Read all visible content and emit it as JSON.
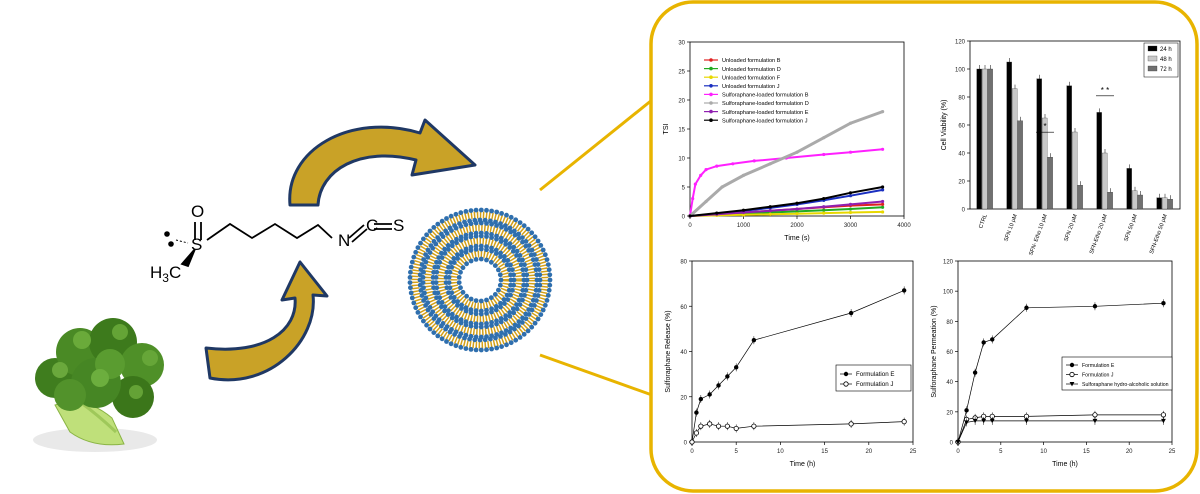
{
  "molecule": {
    "atom_o": "O",
    "atom_s": "S",
    "atom_h3c": "H",
    "atom_h3c_sub": "3",
    "atom_h3c_c": "C",
    "atom_n": "N",
    "atom_c": "C",
    "atom_s2": "S",
    "eq1": "=",
    "eq2": "="
  },
  "colors": {
    "accent_gold": "#e8b400",
    "arrow_navy": "#1f3864",
    "arrow_gold": "#c9a227",
    "vesicle_blue": "#2f6fae",
    "vesicle_gold": "#d4a017"
  },
  "chart_data": [
    {
      "id": "tsi",
      "type": "line",
      "ylabel": "TSI",
      "xlabel": "Time (s)",
      "xlim": [
        0,
        4000
      ],
      "ylim": [
        0,
        30
      ],
      "xticks": [
        0,
        1000,
        2000,
        3000,
        4000
      ],
      "yticks": [
        0,
        5,
        10,
        15,
        20,
        25,
        30
      ],
      "series": [
        {
          "name": "Unloaded formulation B",
          "color": "#e02020",
          "x": [
            0,
            500,
            1000,
            1500,
            2000,
            2500,
            3000,
            3600
          ],
          "y": [
            0,
            0.3,
            0.6,
            0.9,
            1.2,
            1.5,
            1.8,
            2.0
          ]
        },
        {
          "name": "Unloaded formulation D",
          "color": "#22aa22",
          "x": [
            0,
            500,
            1000,
            1500,
            2000,
            2500,
            3000,
            3600
          ],
          "y": [
            0,
            0.2,
            0.4,
            0.6,
            0.8,
            1.0,
            1.2,
            1.5
          ]
        },
        {
          "name": "Unloaded formulation F",
          "color": "#e8d800",
          "x": [
            0,
            500,
            1000,
            1500,
            2000,
            2500,
            3000,
            3600
          ],
          "y": [
            0,
            0.1,
            0.2,
            0.3,
            0.4,
            0.5,
            0.6,
            0.7
          ]
        },
        {
          "name": "Unloaded formulation J",
          "color": "#1a2fc0",
          "x": [
            0,
            500,
            1000,
            1500,
            2000,
            2500,
            3000,
            3600
          ],
          "y": [
            0,
            0.4,
            0.9,
            1.4,
            2.0,
            2.7,
            3.5,
            4.5
          ]
        },
        {
          "name": "Sulforaphane-loaded formulation B",
          "color": "#ff20ff",
          "x": [
            0,
            50,
            100,
            200,
            300,
            500,
            800,
            1200,
            1800,
            2500,
            3000,
            3600
          ],
          "y": [
            0,
            3,
            5.5,
            7,
            8,
            8.6,
            9,
            9.5,
            10,
            10.6,
            11,
            11.5
          ]
        },
        {
          "name": "Sulforaphane-loaded formulation D",
          "color": "#aaaaaa",
          "x": [
            0,
            300,
            600,
            1000,
            1500,
            2000,
            2500,
            3000,
            3600
          ],
          "y": [
            0,
            2.5,
            5,
            7,
            9,
            11,
            13.5,
            16,
            18
          ]
        },
        {
          "name": "Sulforaphane-loaded formulation E",
          "color": "#9020b0",
          "x": [
            0,
            500,
            1000,
            1500,
            2000,
            2500,
            3000,
            3600
          ],
          "y": [
            0,
            0.3,
            0.6,
            0.9,
            1.2,
            1.6,
            2.0,
            2.5
          ]
        },
        {
          "name": "Sulforaphane-loaded formulation J",
          "color": "#000000",
          "x": [
            0,
            500,
            1000,
            1500,
            2000,
            2500,
            3000,
            3600
          ],
          "y": [
            0,
            0.5,
            1.0,
            1.6,
            2.2,
            3.0,
            4.0,
            5.0
          ]
        }
      ]
    },
    {
      "id": "viability",
      "type": "bar",
      "ylabel": "Cell Viability (%)",
      "ylim": [
        0,
        120
      ],
      "yticks": [
        0,
        20,
        40,
        60,
        80,
        100,
        120
      ],
      "categories": [
        "CTRL",
        "SFN 10 μM",
        "SFN- Etho 10 μM",
        "SFN 20 μM",
        "SFN-Etho 20 μM",
        "SFN 50 μM",
        "SFN-Etho 50 μM"
      ],
      "series": [
        {
          "name": "24 h",
          "color": "#000000",
          "values": [
            100,
            105,
            93,
            88,
            69,
            29,
            8
          ]
        },
        {
          "name": "48 h",
          "color": "#c8c8c8",
          "values": [
            100,
            86,
            65,
            55,
            40,
            13,
            8
          ]
        },
        {
          "name": "72 h",
          "color": "#707070",
          "values": [
            100,
            63,
            37,
            17,
            12,
            10,
            7
          ]
        }
      ],
      "annotations": [
        "*",
        "* *",
        "* *"
      ]
    },
    {
      "id": "release",
      "type": "line",
      "ylabel": "Sulforaphane Release (%)",
      "xlabel": "Time (h)",
      "xlim": [
        0,
        25
      ],
      "ylim": [
        0,
        80
      ],
      "xticks": [
        0,
        5,
        10,
        15,
        20,
        25
      ],
      "yticks": [
        0,
        20,
        40,
        60,
        80
      ],
      "series": [
        {
          "name": "Formulation E",
          "marker": "filled",
          "x": [
            0,
            0.5,
            1,
            2,
            3,
            4,
            5,
            7,
            18,
            24
          ],
          "y": [
            0,
            13,
            19,
            21,
            25,
            29,
            33,
            45,
            57,
            67
          ]
        },
        {
          "name": "Formulation J",
          "marker": "open",
          "x": [
            0,
            0.5,
            1,
            2,
            3,
            4,
            5,
            7,
            18,
            24
          ],
          "y": [
            0,
            4,
            7,
            8,
            7,
            7,
            6,
            7,
            8,
            9
          ]
        }
      ]
    },
    {
      "id": "permeation",
      "type": "line",
      "ylabel": "Sulforaphane Permeation (%)",
      "xlabel": "Time (h)",
      "xlim": [
        0,
        25
      ],
      "ylim": [
        0,
        120
      ],
      "xticks": [
        0,
        5,
        10,
        15,
        20,
        25
      ],
      "yticks": [
        0,
        20,
        40,
        60,
        80,
        100,
        120
      ],
      "series": [
        {
          "name": "Formulation E",
          "marker": "filled",
          "x": [
            0,
            1,
            2,
            3,
            4,
            8,
            16,
            24
          ],
          "y": [
            0,
            21,
            46,
            66,
            68,
            89,
            90,
            92
          ]
        },
        {
          "name": "Formulation J",
          "marker": "open",
          "x": [
            0,
            1,
            2,
            3,
            4,
            8,
            16,
            24
          ],
          "y": [
            0,
            15,
            16,
            17,
            17,
            17,
            18,
            18
          ]
        },
        {
          "name": "Sulforaphane hydro-alcoholic solution",
          "marker": "triangle",
          "x": [
            0,
            1,
            2,
            3,
            4,
            8,
            16,
            24
          ],
          "y": [
            0,
            13,
            14,
            14,
            14,
            14,
            14,
            14
          ]
        }
      ]
    }
  ]
}
